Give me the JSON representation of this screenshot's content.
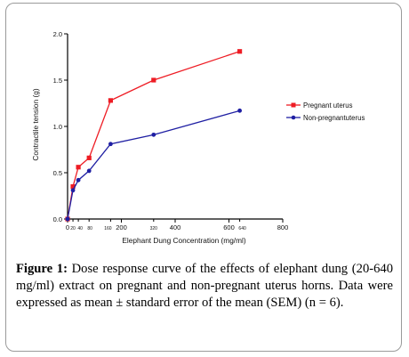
{
  "chart_data": {
    "type": "line",
    "x_values": [
      0,
      20,
      40,
      80,
      160,
      320,
      640
    ],
    "series": [
      {
        "name": "Pregnant uterus",
        "color": "#ee1c24",
        "marker": "square",
        "values": [
          0.0,
          0.35,
          0.56,
          0.66,
          1.28,
          1.5,
          1.81
        ]
      },
      {
        "name": "Non-pregnant uterus",
        "display_name": "Non-pregnantuterus",
        "color": "#1f1fa3",
        "marker": "circle",
        "values": [
          0.0,
          0.31,
          0.42,
          0.52,
          0.81,
          0.91,
          1.17
        ]
      }
    ],
    "xlabel": "Elephant Dung Concentration (mg/ml)",
    "ylabel": "Contractile tension  (g)",
    "xlim": [
      0,
      800
    ],
    "ylim": [
      0,
      2.0
    ],
    "x_ticks": [
      {
        "value": 0,
        "label": "0",
        "size": "large"
      },
      {
        "value": 20,
        "label": "20",
        "size": "small"
      },
      {
        "value": 40,
        "label": "40",
        "size": "small"
      },
      {
        "value": 80,
        "label": "80",
        "size": "small"
      },
      {
        "value": 160,
        "label": "160",
        "size": "small"
      },
      {
        "value": 200,
        "label": "200",
        "size": "large"
      },
      {
        "value": 320,
        "label": "320",
        "size": "small"
      },
      {
        "value": 400,
        "label": "400",
        "size": "large"
      },
      {
        "value": 600,
        "label": "600",
        "size": "large"
      },
      {
        "value": 640,
        "label": "640",
        "size": "small"
      },
      {
        "value": 800,
        "label": "800",
        "size": "large"
      }
    ],
    "y_ticks": [
      {
        "value": 0,
        "label": "0.0"
      },
      {
        "value": 0.5,
        "label": "0.5"
      },
      {
        "value": 1.0,
        "label": "1.0"
      },
      {
        "value": 1.5,
        "label": "1.5"
      },
      {
        "value": 2.0,
        "label": "2.0"
      }
    ],
    "legend_position": "right",
    "grid": false
  },
  "caption": {
    "label": "Figure 1:",
    "text": " Dose response curve of the effects of elephant dung (20-640 mg/ml) extract on pregnant and non-pregnant uterus horns. Data were expressed as mean ± standard error of the mean (SEM) (n = 6)."
  }
}
